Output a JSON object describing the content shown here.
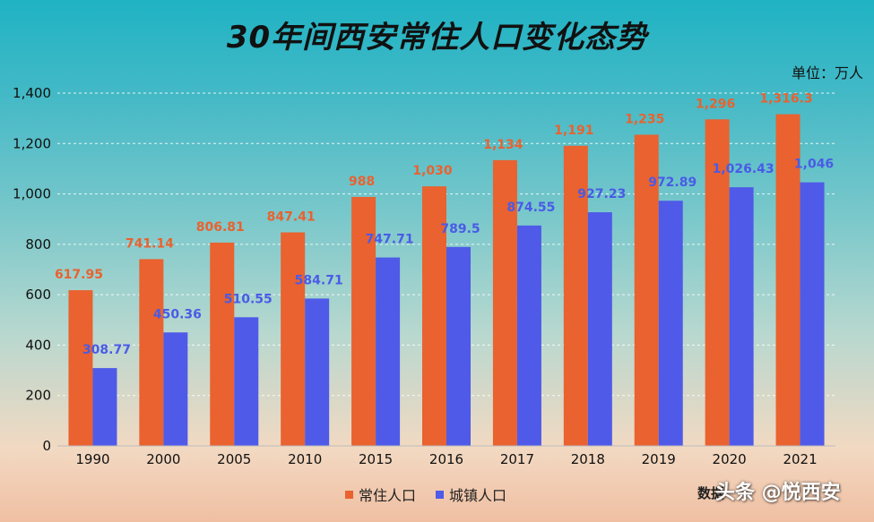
{
  "header": {
    "title": "30年间西安常住人口变化态势",
    "unit": "单位：万人"
  },
  "footer": {
    "source": "数据",
    "watermark": "头条 @悦西安"
  },
  "colors": {
    "series_1": "#e9622f",
    "series_2": "#4f5ae8",
    "label_1": "#e9622f",
    "label_2": "#4a5be6"
  },
  "chart_data": {
    "type": "bar",
    "categories": [
      "1990",
      "2000",
      "2005",
      "2010",
      "2015",
      "2016",
      "2017",
      "2018",
      "2019",
      "2020",
      "2021"
    ],
    "series": [
      {
        "name": "常住人口",
        "values": [
          617.95,
          741.14,
          806.81,
          847.41,
          988,
          1030,
          1134,
          1191,
          1235,
          1296,
          1316.3
        ],
        "labels": [
          "617.95",
          "741.14",
          "806.81",
          "847.41",
          "988",
          "1,030",
          "1,134",
          "1,191",
          "1,235",
          "1,296",
          "1,316.3"
        ]
      },
      {
        "name": "城镇人口",
        "values": [
          308.77,
          450.36,
          510.55,
          584.71,
          747.71,
          789.5,
          874.55,
          927.23,
          972.89,
          1026.43,
          1046
        ],
        "labels": [
          "308.77",
          "450.36",
          "510.55",
          "584.71",
          "747.71",
          "789.5",
          "874.55",
          "927.23",
          "972.89",
          "1,026.43",
          "1,046"
        ]
      }
    ],
    "yticks": [
      "0",
      "200",
      "400",
      "600",
      "800",
      "1,000",
      "1,200",
      "1,400"
    ],
    "ylim": [
      0,
      1400
    ],
    "grid": true,
    "legend": "bottom-center"
  }
}
